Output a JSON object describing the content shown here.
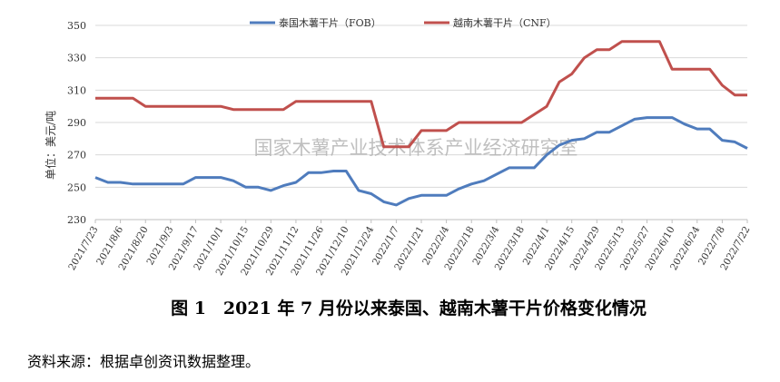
{
  "chart_data": {
    "type": "line",
    "ylabel": "单位：美元/吨",
    "annotation": "国家木薯产业技术体系产业经济研究室",
    "categories": [
      "2021/7/23",
      null,
      "2021/8/6",
      null,
      "2021/8/20",
      null,
      "2021/9/3",
      null,
      "2021/9/17",
      null,
      "2021/10/1",
      null,
      "2021/10/15",
      null,
      "2021/10/29",
      null,
      "2021/11/12",
      null,
      "2021/11/26",
      null,
      "2021/12/10",
      null,
      "2021/12/24",
      null,
      "2022/1/7",
      null,
      "2022/1/21",
      null,
      "2022/2/4",
      null,
      "2022/2/18",
      null,
      "2022/3/4",
      null,
      "2022/3/18",
      null,
      "2022/4/1",
      null,
      "2022/4/15",
      null,
      "2022/4/29",
      null,
      "2022/5/13",
      null,
      "2022/5/27",
      null,
      "2022/6/10",
      null,
      "2022/6/24",
      null,
      "2022/7/8",
      null,
      "2022/7/22"
    ],
    "series": [
      {
        "name": "泰国木薯干片（FOB）",
        "color": "#4f7cbd",
        "values": [
          256,
          253,
          253,
          252,
          252,
          252,
          252,
          252,
          256,
          256,
          256,
          254,
          250,
          250,
          248,
          251,
          253,
          259,
          259,
          260,
          260,
          248,
          246,
          241,
          239,
          243,
          245,
          245,
          245,
          249,
          252,
          254,
          258,
          262,
          262,
          262,
          270,
          276,
          279,
          280,
          284,
          284,
          288,
          292,
          293,
          293,
          293,
          289,
          286,
          286,
          279,
          278,
          274
        ]
      },
      {
        "name": "越南木薯干片（CNF）",
        "color": "#c0504d",
        "values": [
          305,
          305,
          305,
          305,
          300,
          300,
          300,
          300,
          300,
          300,
          300,
          298,
          298,
          298,
          298,
          298,
          303,
          303,
          303,
          303,
          303,
          303,
          303,
          275,
          275,
          275,
          285,
          285,
          285,
          290,
          290,
          290,
          290,
          290,
          290,
          295,
          300,
          315,
          320,
          330,
          335,
          335,
          340,
          340,
          340,
          340,
          323,
          323,
          323,
          323,
          313,
          307,
          307
        ]
      }
    ],
    "ylim": [
      230,
      350
    ],
    "yticks": [
      230,
      250,
      270,
      290,
      310,
      330,
      350
    ],
    "grid": true,
    "legend": "top"
  },
  "caption": "图 1　2021 年 7 月份以来泰国、越南木薯干片价格变化情况",
  "source": "资料来源：根据卓创资讯数据整理。"
}
